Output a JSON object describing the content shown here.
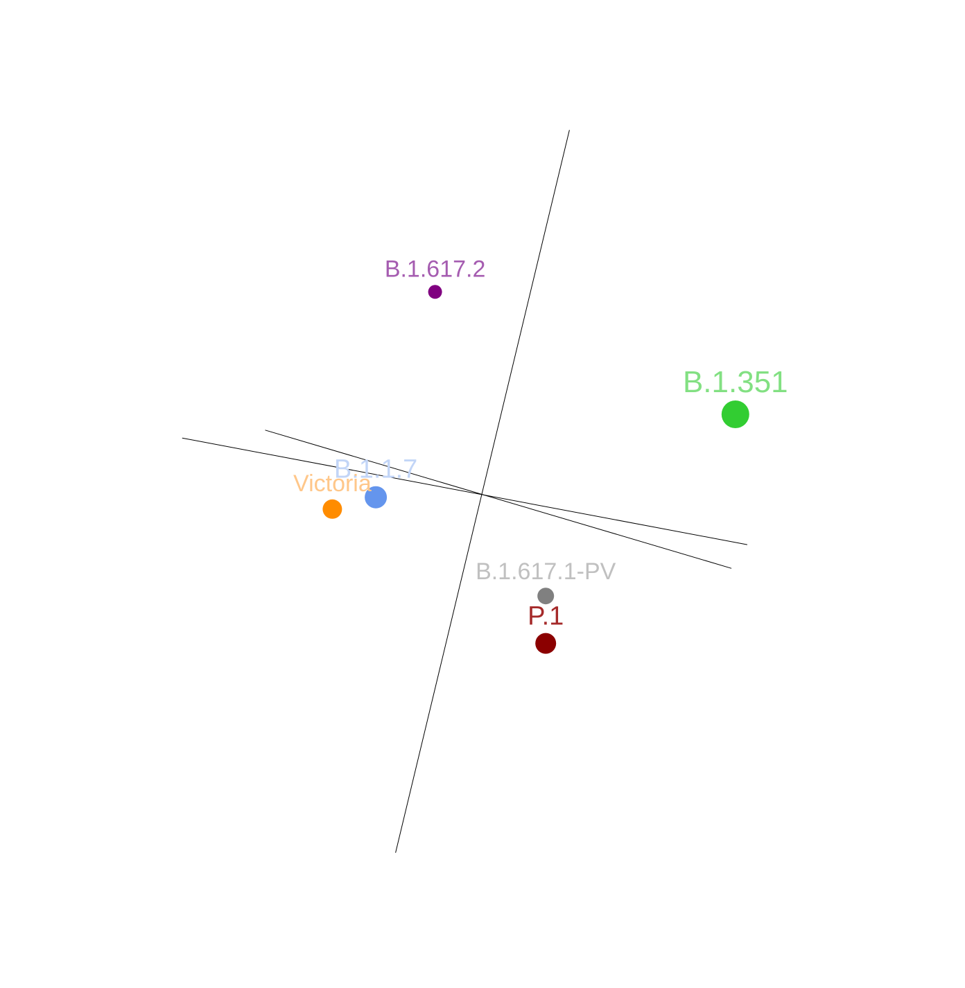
{
  "chart_data": {
    "type": "scatter",
    "title": "",
    "xlabel": "",
    "ylabel": "",
    "grid": false,
    "legend": "none",
    "xlim": [
      -7.5,
      7.5
    ],
    "ylim": [
      -7.5,
      7.5
    ],
    "axes": [
      {
        "name": "axis-1",
        "from": [
          -2.2,
          -9.1
        ],
        "to": [
          2.2,
          9.2
        ]
      },
      {
        "name": "axis-2",
        "from": [
          -7.6,
          1.4
        ],
        "to": [
          6.7,
          -1.3
        ]
      },
      {
        "name": "axis-3",
        "from": [
          -5.5,
          1.6
        ],
        "to": [
          6.3,
          -1.9
        ]
      }
    ],
    "points": [
      {
        "label": "B.1.617.2",
        "x": -1.2,
        "y": 5.1,
        "color": "#800080",
        "label_color": "#a55cb0",
        "size": 1.0
      },
      {
        "label": "B.1.351",
        "x": 6.4,
        "y": 2.0,
        "color": "#32cd32",
        "label_color": "#82e082",
        "size": 2.0
      },
      {
        "label": "B.1.1.7",
        "x": -2.7,
        "y": -0.1,
        "color": "#6495ed",
        "label_color": "#c2d5f7",
        "size": 1.6
      },
      {
        "label": "Victoria",
        "x": -3.8,
        "y": -0.4,
        "color": "#ff8c00",
        "label_color": "#ffc78a",
        "size": 1.4
      },
      {
        "label": "B.1.617.1-PV",
        "x": 1.6,
        "y": -2.6,
        "color": "#808080",
        "label_color": "#c0c0c0",
        "size": 1.2
      },
      {
        "label": "P.1",
        "x": 1.6,
        "y": -3.8,
        "color": "#8b0000",
        "label_color": "#a52a2a",
        "size": 1.5
      }
    ]
  }
}
